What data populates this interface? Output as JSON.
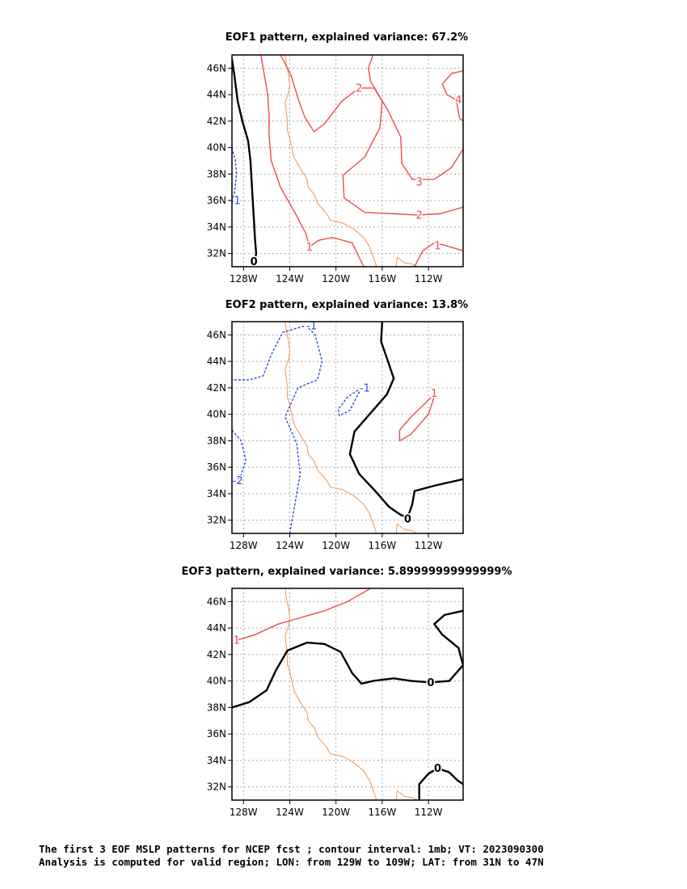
{
  "chart_data": [
    {
      "type": "contour",
      "title": "EOF1 pattern, explained variance: 67.2%",
      "xlim": [
        -129,
        -109
      ],
      "ylim": [
        31,
        47
      ],
      "x_ticks": [
        "128W",
        "124W",
        "120W",
        "116W",
        "112W"
      ],
      "y_ticks": [
        "32N",
        "34N",
        "36N",
        "38N",
        "40N",
        "42N",
        "44N",
        "46N"
      ],
      "grid": true,
      "contours": [
        {
          "level": "0",
          "style": "zero",
          "points": [
            [
              -129.0,
              46.7
            ],
            [
              -128.8,
              45.5
            ],
            [
              -128.5,
              43.5
            ],
            [
              -128.1,
              42.0
            ],
            [
              -127.6,
              40.5
            ],
            [
              -127.4,
              39.0
            ],
            [
              -127.3,
              37.5
            ],
            [
              -127.2,
              36.0
            ],
            [
              -127.1,
              34.5
            ],
            [
              -127.0,
              33.0
            ],
            [
              -126.9,
              32.0
            ],
            [
              -127.0,
              31.6
            ],
            [
              -127.2,
              31.4
            ]
          ],
          "labels": [
            {
              "text": "0",
              "x": -127.1,
              "y": 31.4
            }
          ]
        },
        {
          "level": "-1",
          "style": "negative",
          "points": [
            [
              -129.0,
              40.0
            ],
            [
              -128.7,
              39.0
            ],
            [
              -128.6,
              38.0
            ],
            [
              -128.8,
              36.5
            ],
            [
              -129.0,
              35.9
            ]
          ],
          "labels": [
            {
              "text": "-1",
              "x": -128.7,
              "y": 36.0
            }
          ]
        },
        {
          "level": "1",
          "style": "positive",
          "points": [
            [
              -126.5,
              47.0
            ],
            [
              -126.2,
              45.5
            ],
            [
              -125.9,
              44.0
            ],
            [
              -125.8,
              42.5
            ],
            [
              -125.8,
              41.0
            ],
            [
              -125.6,
              39.0
            ],
            [
              -124.8,
              37.0
            ],
            [
              -123.5,
              35.0
            ],
            [
              -122.6,
              33.5
            ],
            [
              -122.3,
              32.5
            ],
            [
              -121.5,
              33.0
            ],
            [
              -120.3,
              33.2
            ],
            [
              -118.6,
              32.8
            ],
            [
              -117.6,
              31.0
            ]
          ],
          "labels": [
            {
              "text": "1",
              "x": -122.3,
              "y": 32.5
            }
          ]
        },
        {
          "level": "1",
          "style": "positive",
          "points": [
            [
              -113.2,
              31.0
            ],
            [
              -112.5,
              32.2
            ],
            [
              -111.5,
              32.8
            ],
            [
              -110.5,
              32.6
            ],
            [
              -109.0,
              32.2
            ]
          ],
          "labels": [
            {
              "text": "1",
              "x": -111.2,
              "y": 32.6
            }
          ]
        },
        {
          "level": "2",
          "style": "positive",
          "points": [
            [
              -124.8,
              47.0
            ],
            [
              -123.9,
              45.5
            ],
            [
              -123.2,
              43.5
            ],
            [
              -122.7,
              42.3
            ],
            [
              -121.9,
              41.2
            ],
            [
              -121.0,
              41.8
            ],
            [
              -119.5,
              43.5
            ],
            [
              -118.0,
              44.5
            ],
            [
              -116.7,
              44.5
            ],
            [
              -116.0,
              43.5
            ],
            [
              -116.2,
              41.5
            ],
            [
              -117.5,
              39.3
            ],
            [
              -119.4,
              37.9
            ],
            [
              -119.3,
              36.2
            ],
            [
              -117.5,
              35.1
            ],
            [
              -114.9,
              35.0
            ],
            [
              -113.0,
              34.9
            ],
            [
              -111.0,
              35.0
            ],
            [
              -109.0,
              35.5
            ]
          ],
          "labels": [
            {
              "text": "2",
              "x": -118.0,
              "y": 44.5
            },
            {
              "text": "2",
              "x": -112.8,
              "y": 34.9
            }
          ]
        },
        {
          "level": "3",
          "style": "positive",
          "points": [
            [
              -116.8,
              47.0
            ],
            [
              -117.2,
              46.0
            ],
            [
              -117.0,
              45.0
            ],
            [
              -115.5,
              42.8
            ],
            [
              -114.4,
              40.8
            ],
            [
              -114.3,
              38.8
            ],
            [
              -113.4,
              37.6
            ],
            [
              -111.5,
              37.6
            ],
            [
              -110.0,
              38.5
            ],
            [
              -109.0,
              39.9
            ]
          ],
          "labels": [
            {
              "text": "3",
              "x": -112.8,
              "y": 37.4
            }
          ]
        },
        {
          "level": "4",
          "style": "positive",
          "points": [
            [
              -109.0,
              45.8
            ],
            [
              -110.0,
              45.6
            ],
            [
              -110.8,
              44.8
            ],
            [
              -110.4,
              44.0
            ],
            [
              -109.6,
              43.6
            ],
            [
              -109.3,
              42.2
            ],
            [
              -109.0,
              42.0
            ]
          ],
          "labels": [
            {
              "text": "4",
              "x": -109.4,
              "y": 43.6
            }
          ]
        }
      ]
    },
    {
      "type": "contour",
      "title": "EOF2 pattern, explained variance: 13.8%",
      "xlim": [
        -129,
        -109
      ],
      "ylim": [
        31,
        47
      ],
      "x_ticks": [
        "128W",
        "124W",
        "120W",
        "116W",
        "112W"
      ],
      "y_ticks": [
        "32N",
        "34N",
        "36N",
        "38N",
        "40N",
        "42N",
        "44N",
        "46N"
      ],
      "grid": true,
      "contours": [
        {
          "level": "0",
          "style": "zero",
          "points": [
            [
              -116.0,
              47.0
            ],
            [
              -116.1,
              45.5
            ],
            [
              -115.5,
              44.0
            ],
            [
              -115.0,
              42.7
            ],
            [
              -115.6,
              41.5
            ],
            [
              -116.8,
              40.3
            ],
            [
              -118.4,
              38.7
            ],
            [
              -118.8,
              37.0
            ],
            [
              -118.0,
              35.5
            ],
            [
              -116.6,
              34.2
            ],
            [
              -115.4,
              33.0
            ],
            [
              -114.4,
              32.4
            ],
            [
              -113.8,
              32.2
            ],
            [
              -113.4,
              33.2
            ],
            [
              -113.2,
              34.2
            ],
            [
              -111.5,
              34.6
            ],
            [
              -109.0,
              35.1
            ]
          ],
          "labels": [
            {
              "text": "0",
              "x": -113.8,
              "y": 32.1
            }
          ]
        },
        {
          "level": "-1",
          "style": "negative",
          "points": [
            [
              -124.0,
              31.0
            ],
            [
              -123.6,
              33.0
            ],
            [
              -123.1,
              35.5
            ],
            [
              -123.4,
              37.8
            ],
            [
              -124.4,
              39.8
            ],
            [
              -123.3,
              42.0
            ],
            [
              -121.6,
              42.6
            ],
            [
              -121.2,
              44.0
            ],
            [
              -121.8,
              46.0
            ],
            [
              -122.6,
              46.7
            ],
            [
              -124.6,
              46.2
            ],
            [
              -125.6,
              44.5
            ],
            [
              -126.3,
              42.9
            ],
            [
              -127.5,
              42.6
            ],
            [
              -129.0,
              42.6
            ]
          ],
          "labels": [
            {
              "text": "-1",
              "x": -122.1,
              "y": 46.7
            }
          ]
        },
        {
          "level": "-1",
          "style": "negative",
          "points": [
            [
              -117.8,
              42.0
            ],
            [
              -119.0,
              41.3
            ],
            [
              -119.8,
              40.4
            ],
            [
              -119.7,
              39.9
            ],
            [
              -118.8,
              40.3
            ],
            [
              -118.1,
              41.5
            ],
            [
              -117.8,
              42.0
            ]
          ],
          "labels": [
            {
              "text": "-1",
              "x": -117.5,
              "y": 42.0
            }
          ]
        },
        {
          "level": "-2",
          "style": "negative",
          "points": [
            [
              -129.0,
              38.8
            ],
            [
              -128.2,
              38.0
            ],
            [
              -127.8,
              36.5
            ],
            [
              -128.3,
              35.2
            ],
            [
              -129.0,
              34.9
            ]
          ],
          "labels": [
            {
              "text": "-2",
              "x": -128.5,
              "y": 35.0
            }
          ]
        },
        {
          "level": "1",
          "style": "positive",
          "points": [
            [
              -114.5,
              38.0
            ],
            [
              -113.5,
              38.5
            ],
            [
              -112.0,
              40.0
            ],
            [
              -111.4,
              41.6
            ],
            [
              -112.2,
              40.9
            ],
            [
              -113.5,
              39.8
            ],
            [
              -114.5,
              38.8
            ],
            [
              -114.5,
              38.0
            ]
          ],
          "labels": [
            {
              "text": "1",
              "x": -111.5,
              "y": 41.6
            }
          ]
        }
      ]
    },
    {
      "type": "contour",
      "title": "EOF3 pattern, explained variance: 5.89999999999999%",
      "xlim": [
        -129,
        -109
      ],
      "ylim": [
        31,
        47
      ],
      "x_ticks": [
        "128W",
        "124W",
        "120W",
        "116W",
        "112W"
      ],
      "y_ticks": [
        "32N",
        "34N",
        "36N",
        "38N",
        "40N",
        "42N",
        "44N",
        "46N"
      ],
      "grid": true,
      "contours": [
        {
          "level": "1",
          "style": "positive",
          "points": [
            [
              -128.5,
              43.1
            ],
            [
              -127.0,
              43.5
            ],
            [
              -125.0,
              44.3
            ],
            [
              -123.0,
              44.8
            ],
            [
              -121.0,
              45.3
            ],
            [
              -119.0,
              46.0
            ],
            [
              -117.0,
              47.0
            ]
          ],
          "labels": [
            {
              "text": "1",
              "x": -128.6,
              "y": 43.1
            }
          ]
        },
        {
          "level": "0",
          "style": "zero",
          "points": [
            [
              -129.0,
              38.0
            ],
            [
              -127.5,
              38.4
            ],
            [
              -126.0,
              39.3
            ],
            [
              -125.2,
              40.8
            ],
            [
              -124.2,
              42.3
            ],
            [
              -122.5,
              42.9
            ],
            [
              -121.0,
              42.8
            ],
            [
              -119.6,
              42.2
            ],
            [
              -118.6,
              40.6
            ],
            [
              -117.8,
              39.8
            ],
            [
              -116.8,
              40.0
            ],
            [
              -115.0,
              40.2
            ],
            [
              -113.5,
              40.0
            ],
            [
              -111.8,
              39.9
            ],
            [
              -110.2,
              40.0
            ],
            [
              -109.0,
              41.2
            ],
            [
              -109.4,
              42.5
            ],
            [
              -110.8,
              43.5
            ],
            [
              -111.5,
              44.3
            ],
            [
              -110.6,
              45.0
            ],
            [
              -109.0,
              45.3
            ]
          ],
          "labels": [
            {
              "text": "0",
              "x": -111.8,
              "y": 39.9
            }
          ]
        },
        {
          "level": "0",
          "style": "zero",
          "points": [
            [
              -112.8,
              31.0
            ],
            [
              -112.8,
              32.2
            ],
            [
              -112.0,
              33.0
            ],
            [
              -111.2,
              33.4
            ],
            [
              -110.2,
              33.1
            ],
            [
              -109.5,
              32.5
            ],
            [
              -109.0,
              32.2
            ]
          ],
          "labels": [
            {
              "text": "0",
              "x": -111.2,
              "y": 33.4
            }
          ]
        }
      ]
    }
  ],
  "coastline": [
    [
      -124.4,
      47.0
    ],
    [
      -124.3,
      46.3
    ],
    [
      -124.1,
      45.5
    ],
    [
      -124.0,
      44.8
    ],
    [
      -124.1,
      44.2
    ],
    [
      -124.4,
      43.4
    ],
    [
      -124.3,
      42.7
    ],
    [
      -124.2,
      42.0
    ],
    [
      -124.2,
      41.3
    ],
    [
      -124.0,
      40.7
    ],
    [
      -123.8,
      39.9
    ],
    [
      -123.6,
      39.2
    ],
    [
      -123.0,
      38.3
    ],
    [
      -122.5,
      37.6
    ],
    [
      -122.4,
      37.0
    ],
    [
      -121.9,
      36.5
    ],
    [
      -121.6,
      35.8
    ],
    [
      -120.8,
      35.0
    ],
    [
      -120.5,
      34.5
    ],
    [
      -119.4,
      34.3
    ],
    [
      -118.4,
      33.8
    ],
    [
      -117.6,
      33.2
    ],
    [
      -117.1,
      32.5
    ],
    [
      -116.8,
      31.8
    ],
    [
      -116.5,
      31.0
    ]
  ],
  "gulf_coastline": [
    [
      -114.8,
      31.0
    ],
    [
      -114.7,
      31.7
    ],
    [
      -114.1,
      31.3
    ],
    [
      -113.4,
      31.2
    ],
    [
      -113.0,
      31.0
    ]
  ],
  "caption": {
    "line1": "The first 3 EOF MSLP patterns for NCEP fcst ; contour interval: 1mb; VT: 2023090300",
    "line2": "Analysis is computed for valid region; LON: from 129W to 109W; LAT: from 31N to 47N"
  },
  "colors": {
    "positive": "#f04b4b",
    "negative": "#2a4bdc",
    "zero": "#000000",
    "coast": "#f0944a",
    "grid": "#a8a8a8"
  }
}
